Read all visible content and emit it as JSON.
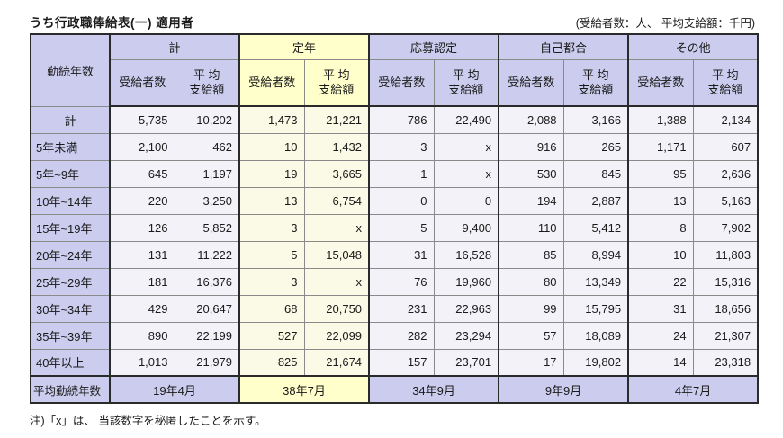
{
  "title": "うち行政職俸給表(一) 適用者",
  "unit_note": "(受給者数：人、 平均支給額：千円)",
  "footnote": "注)「x」は、 当該数字を秘匿したことを示す。",
  "table": {
    "row_header": "勤続年数",
    "groups": [
      {
        "label": "計",
        "highlight": false
      },
      {
        "label": "定年",
        "highlight": true
      },
      {
        "label": "応募認定",
        "highlight": false
      },
      {
        "label": "自己都合",
        "highlight": false
      },
      {
        "label": "その他",
        "highlight": false
      }
    ],
    "sub_headers": {
      "recipients": "受給者数",
      "average": "平 均\n支給額"
    },
    "rows": [
      {
        "label": "計",
        "center": true,
        "values": [
          "5,735",
          "10,202",
          "1,473",
          "21,221",
          "786",
          "22,490",
          "2,088",
          "3,166",
          "1,388",
          "2,134"
        ]
      },
      {
        "label": "5年未満",
        "center": false,
        "values": [
          "2,100",
          "462",
          "10",
          "1,432",
          "3",
          "x",
          "916",
          "265",
          "1,171",
          "607"
        ]
      },
      {
        "label": "5年~9年",
        "center": false,
        "values": [
          "645",
          "1,197",
          "19",
          "3,665",
          "1",
          "x",
          "530",
          "845",
          "95",
          "2,636"
        ]
      },
      {
        "label": "10年~14年",
        "center": false,
        "values": [
          "220",
          "3,250",
          "13",
          "6,754",
          "0",
          "0",
          "194",
          "2,887",
          "13",
          "5,163"
        ]
      },
      {
        "label": "15年~19年",
        "center": false,
        "values": [
          "126",
          "5,852",
          "3",
          "x",
          "5",
          "9,400",
          "110",
          "5,412",
          "8",
          "7,902"
        ]
      },
      {
        "label": "20年~24年",
        "center": false,
        "values": [
          "131",
          "11,222",
          "5",
          "15,048",
          "31",
          "16,528",
          "85",
          "8,994",
          "10",
          "11,803"
        ]
      },
      {
        "label": "25年~29年",
        "center": false,
        "values": [
          "181",
          "16,376",
          "3",
          "x",
          "76",
          "19,960",
          "80",
          "13,349",
          "22",
          "15,316"
        ]
      },
      {
        "label": "30年~34年",
        "center": false,
        "values": [
          "429",
          "20,647",
          "68",
          "20,750",
          "231",
          "22,963",
          "99",
          "15,795",
          "31",
          "18,656"
        ]
      },
      {
        "label": "35年~39年",
        "center": false,
        "values": [
          "890",
          "22,199",
          "527",
          "22,099",
          "282",
          "23,294",
          "57",
          "18,089",
          "24",
          "21,307"
        ]
      },
      {
        "label": "40年以上",
        "center": false,
        "values": [
          "1,013",
          "21,979",
          "825",
          "21,674",
          "157",
          "23,701",
          "17",
          "19,802",
          "14",
          "23,318"
        ]
      }
    ],
    "summary_row": {
      "label": "平均勤続年数",
      "values": [
        "19年4月",
        "38年7月",
        "34年9月",
        "9年9月",
        "4年7月"
      ]
    }
  },
  "colors": {
    "header_lavender": "#ccccee",
    "header_yellow": "#ffffcc",
    "cell_light": "#f2f2f8",
    "cell_light_yellow": "#fafae6",
    "border_dark": "#2a2a2a",
    "border_light": "#8a8a8a"
  }
}
